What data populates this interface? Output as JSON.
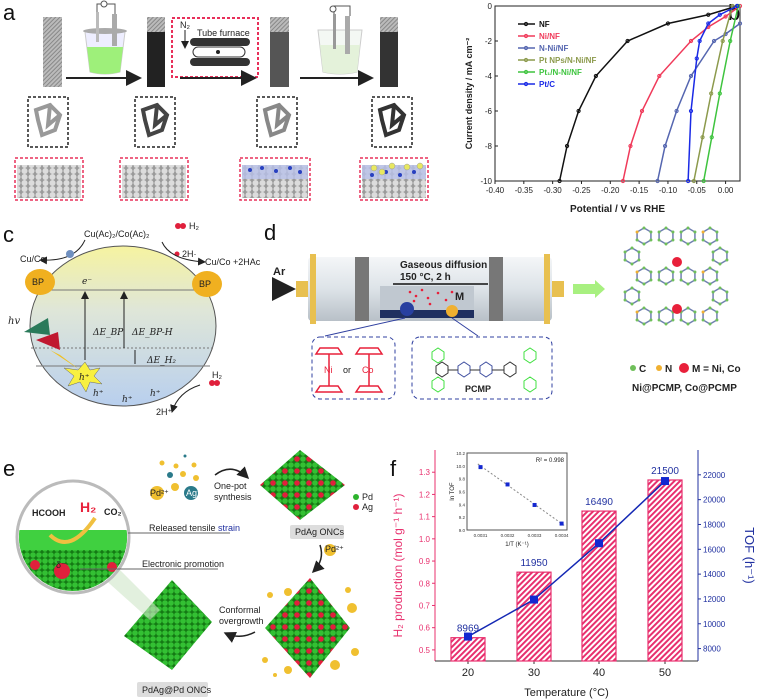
{
  "panels": {
    "a": {
      "label": "a",
      "furnace_label": "Tube furnace",
      "gas_label": "N₂"
    },
    "b": {
      "label": "b"
    },
    "c": {
      "label": "c",
      "precursor": "Cu(Ac)₂/Co(Ac)₂",
      "h2_top": "H₂",
      "two_h_top": "2H·",
      "left_product": "Cu/Co",
      "right_product": "Cu/Co +2HAc",
      "bp": "BP",
      "electron": "e⁻",
      "hv": "hv",
      "delta_bp": "ΔE_BP",
      "delta_bph": "ΔE_BP-H",
      "delta_h2": "ΔE_H₂",
      "hole": "h⁺",
      "h2_bottom": "H₂",
      "two_h_bottom": "2H⁺"
    },
    "d": {
      "label": "d",
      "gas": "Ar",
      "process_line1": "Gaseous diffusion",
      "process_line2": "150 °C, 2 h",
      "metal": "M",
      "ni": "Ni",
      "or": "or",
      "co": "Co",
      "polymer": "PCMP",
      "legend_c": "C",
      "legend_n": "N",
      "legend_m": "M = Ni, Co",
      "products": "Ni@PCMP, Co@PCMP",
      "colors": {
        "C": "#6fbf5a",
        "N": "#f0b030",
        "M": "#e8203a"
      }
    },
    "e": {
      "label": "e",
      "pd_ion": "Pd²⁺",
      "ag_ion": "Ag⁺",
      "step1": [
        "One-pot",
        "synthesis"
      ],
      "legend_pd": "Pd",
      "legend_ag": "Ag",
      "intermediate": "PdAg ONCs",
      "pd_ion2": "Pd²⁺",
      "step2": [
        "Conformal",
        "overgrowth"
      ],
      "product": "PdAg@Pd ONCs",
      "reactant": "HCOOH",
      "h2": "H₂",
      "co2": "CO₂",
      "note1_a": "Released tensile ",
      "note1_b": "strain",
      "note2": "Electronic promotion",
      "delta": "δ⁻",
      "colors": {
        "Pd": "#2db32d",
        "Ag": "#e0203c"
      }
    },
    "f": {
      "label": "f"
    }
  },
  "chart_data": [
    {
      "panel": "b",
      "type": "line",
      "xlabel": "Potential / V vs RHE",
      "ylabel": "Current density / mA cm⁻²",
      "xlim": [
        -0.4,
        0.025
      ],
      "ylim": [
        -10,
        0
      ],
      "xticks": [
        "-0.40",
        "-0.35",
        "-0.30",
        "-0.25",
        "-0.20",
        "-0.15",
        "-0.10",
        "-0.05",
        "0.00"
      ],
      "yticks": [
        "0",
        "-2",
        "-4",
        "-6",
        "-8",
        "-10"
      ],
      "legend_placement": "top-left",
      "series": [
        {
          "name": "NF",
          "color": "#111111",
          "x": [
            0.02,
            -0.03,
            -0.1,
            -0.17,
            -0.225,
            -0.255,
            -0.275,
            -0.288
          ],
          "y": [
            0,
            -0.5,
            -1,
            -2,
            -4,
            -6,
            -8,
            -10
          ]
        },
        {
          "name": "Ni/NF",
          "color": "#f03a5a",
          "x": [
            0.025,
            0.0,
            -0.03,
            -0.06,
            -0.115,
            -0.145,
            -0.165,
            -0.178
          ],
          "y": [
            0,
            -0.6,
            -1.2,
            -2,
            -4,
            -6,
            -8,
            -10
          ]
        },
        {
          "name": "N-Ni/NF",
          "color": "#5566b0",
          "x": [
            0.025,
            0.0,
            -0.02,
            -0.06,
            -0.085,
            -0.105,
            -0.118
          ],
          "y": [
            -1,
            -1.6,
            -2,
            -4,
            -6,
            -8,
            -10
          ]
        },
        {
          "name": "Pt NPs/N-Ni/NF",
          "color": "#8c9a4c",
          "x": [
            0.012,
            -0.005,
            -0.025,
            -0.04,
            -0.055
          ],
          "y": [
            0,
            -2,
            -5,
            -7.5,
            -10
          ]
        },
        {
          "name": "Pt₁/N-Ni/NF",
          "color": "#3ec43e",
          "x": [
            0.022,
            0.008,
            -0.01,
            -0.024,
            -0.038
          ],
          "y": [
            0,
            -2,
            -5,
            -7.5,
            -10
          ]
        },
        {
          "name": "Pt/C",
          "color": "#1a2ae6",
          "x": [
            0.02,
            -0.01,
            -0.03,
            -0.045,
            -0.05,
            -0.06,
            -0.065
          ],
          "y": [
            0,
            -0.5,
            -1,
            -2,
            -3,
            -6,
            -10
          ]
        }
      ]
    },
    {
      "panel": "f",
      "type": "bar",
      "xlabel": "Temperature (°C)",
      "ylabel": "H₂ production (mol g⁻¹ h⁻¹)",
      "y2label": "TOF (h⁻¹)",
      "categories": [
        "20",
        "30",
        "40",
        "50"
      ],
      "ylim": [
        0.45,
        1.4
      ],
      "yticks": [
        "0.5",
        "0.6",
        "0.7",
        "0.8",
        "0.9",
        "1.0",
        "1.1",
        "1.2",
        "1.3"
      ],
      "y2lim": [
        7000,
        24000
      ],
      "y2ticks": [
        "8000",
        "10000",
        "12000",
        "14000",
        "16000",
        "18000",
        "20000",
        "22000"
      ],
      "bar_color": "#e8306e",
      "line_color": "#1428b4",
      "series": [
        {
          "name": "H₂ production",
          "type": "bar",
          "axis": "left",
          "values": [
            0.555,
            0.85,
            1.125,
            1.265
          ]
        },
        {
          "name": "TOF",
          "type": "line",
          "axis": "right",
          "values": [
            8969,
            11950,
            16490,
            21500
          ]
        }
      ],
      "data_labels": [
        "8969",
        "11950",
        "16490",
        "21500"
      ],
      "inset": {
        "type": "scatter",
        "xlabel": "1/T (K⁻¹)",
        "ylabel": "ln TOF",
        "xlim": [
          0.00305,
          0.00342
        ],
        "ylim": [
          9.0,
          10.2
        ],
        "xticks": [
          "0.0031",
          "0.0032",
          "0.0033",
          "0.0034"
        ],
        "yticks": [
          "9.0",
          "9.2",
          "9.4",
          "9.6",
          "9.8",
          "10.0",
          "10.2"
        ],
        "x": [
          0.0031,
          0.0032,
          0.0033,
          0.0034
        ],
        "y": [
          9.98,
          9.71,
          9.39,
          9.1
        ],
        "annotation": "R² = 0.998"
      }
    }
  ]
}
